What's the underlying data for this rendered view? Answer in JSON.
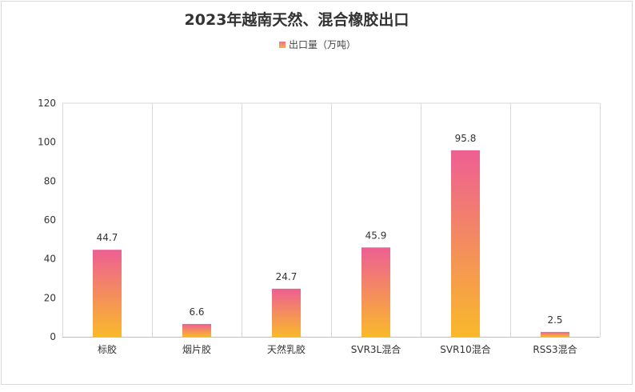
{
  "chart_data": {
    "type": "bar",
    "title": "2023年越南天然、混合橡胶出口",
    "legend": [
      {
        "name": "出口量（万吨）"
      }
    ],
    "categories": [
      "标胶",
      "烟片胶",
      "天然乳胶",
      "SVR3L混合",
      "SVR10混合",
      "RSS3混合"
    ],
    "series": [
      {
        "name": "出口量（万吨）",
        "values": [
          44.7,
          6.6,
          24.7,
          45.9,
          95.8,
          2.5
        ]
      }
    ],
    "value_labels": [
      "44.7",
      "6.6",
      "24.7",
      "45.9",
      "95.8",
      "2.5"
    ],
    "y_ticks": [
      "0",
      "20",
      "40",
      "60",
      "80",
      "100",
      "120"
    ],
    "ylim": [
      0,
      120
    ],
    "xlabel": "",
    "ylabel": "",
    "legend_position": "top-center",
    "grid": "vertical-category-lines",
    "colors": {
      "bar_top": "#ee5f93",
      "bar_bottom": "#f9b92a",
      "grid": "#d9d9d9",
      "text": "#333333"
    }
  }
}
